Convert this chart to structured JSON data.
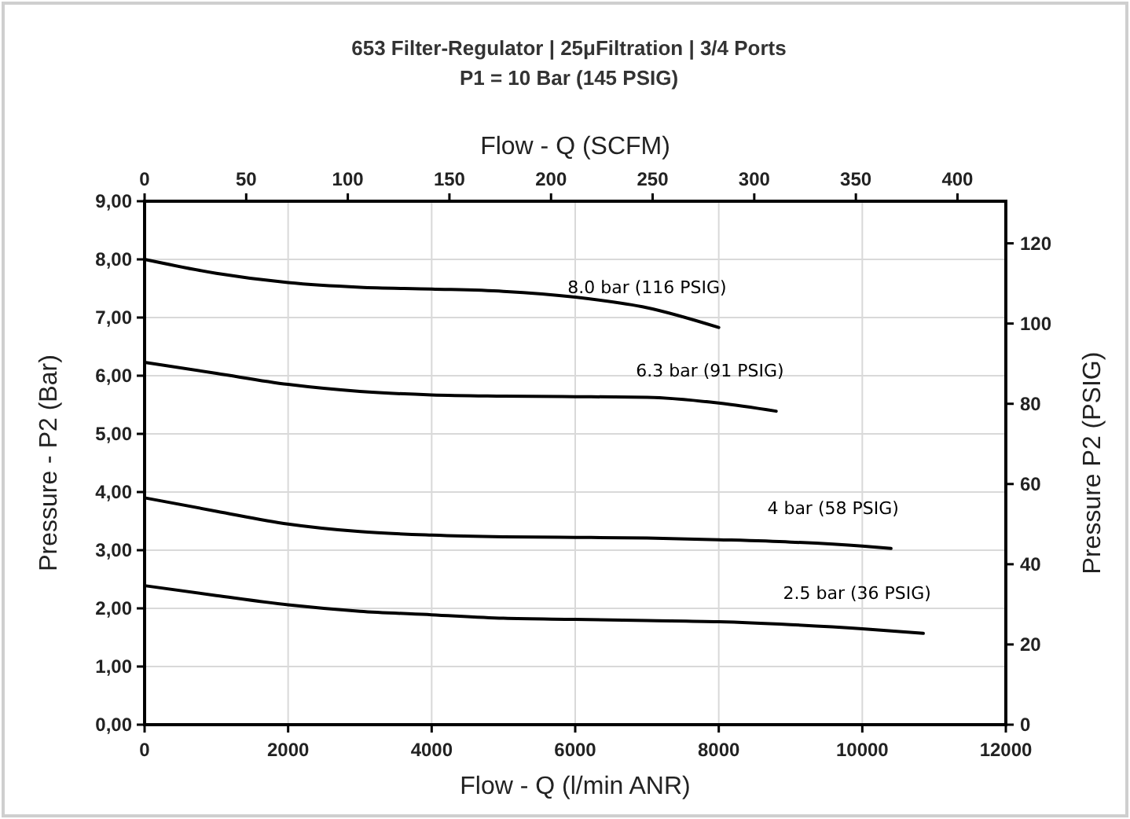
{
  "chart_data": {
    "type": "line",
    "title": "653 Filter-Regulator | 25μFiltration | 3/4 Ports",
    "subtitle": "P1 = 10 Bar (145 PSIG)",
    "xlabel": "Flow - Q (l/min ANR)",
    "x2label": "Flow - Q (SCFM)",
    "ylabel": "Pressure - P2 (Bar)",
    "y2label": "Pressure P2 (PSIG)",
    "xlim": [
      0,
      12000
    ],
    "xticks": [
      0,
      2000,
      4000,
      6000,
      8000,
      10000,
      12000
    ],
    "x2lim": [
      0,
      423.8
    ],
    "x2ticks": [
      0,
      50,
      100,
      150,
      200,
      250,
      300,
      350,
      400
    ],
    "ylim": [
      0,
      9
    ],
    "yticks": [
      {
        "value": 0,
        "label": "0,00"
      },
      {
        "value": 1,
        "label": "1,00"
      },
      {
        "value": 2,
        "label": "2,00"
      },
      {
        "value": 3,
        "label": "3,00"
      },
      {
        "value": 4,
        "label": "4,00"
      },
      {
        "value": 5,
        "label": "5,00"
      },
      {
        "value": 6,
        "label": "6,00"
      },
      {
        "value": 7,
        "label": "7,00"
      },
      {
        "value": 8,
        "label": "8,00"
      },
      {
        "value": 9,
        "label": "9,00"
      }
    ],
    "y2lim": [
      0,
      130.5
    ],
    "y2ticks": [
      0,
      20,
      40,
      60,
      80,
      100,
      120
    ],
    "grid": true,
    "marker": "none",
    "line_style": "solid",
    "series": [
      {
        "name": "8.0 bar (116 PSIG)",
        "color": "#000000",
        "x": [
          0,
          1000,
          2000,
          3000,
          4000,
          5000,
          6000,
          7000,
          8000
        ],
        "values": [
          8.0,
          7.76,
          7.6,
          7.52,
          7.49,
          7.45,
          7.35,
          7.17,
          6.83
        ]
      },
      {
        "name": "6.3 bar (91 PSIG)",
        "color": "#000000",
        "x": [
          0,
          1000,
          2000,
          3000,
          4000,
          5000,
          6000,
          7000,
          8000,
          8800
        ],
        "values": [
          6.23,
          6.04,
          5.85,
          5.73,
          5.67,
          5.65,
          5.64,
          5.63,
          5.53,
          5.39
        ]
      },
      {
        "name": "4 bar (58 PSIG)",
        "color": "#000000",
        "x": [
          0,
          1000,
          2000,
          3000,
          4000,
          5000,
          6000,
          7000,
          8000,
          9000,
          10000,
          10400
        ],
        "values": [
          3.9,
          3.67,
          3.45,
          3.32,
          3.26,
          3.23,
          3.22,
          3.21,
          3.18,
          3.14,
          3.07,
          3.03
        ]
      },
      {
        "name": "2.5 bar (36 PSIG)",
        "color": "#000000",
        "x": [
          0,
          1000,
          2000,
          3000,
          4000,
          5000,
          6000,
          7000,
          8000,
          9000,
          10000,
          10850
        ],
        "values": [
          2.39,
          2.22,
          2.06,
          1.95,
          1.89,
          1.83,
          1.81,
          1.79,
          1.77,
          1.72,
          1.65,
          1.57
        ]
      }
    ]
  }
}
